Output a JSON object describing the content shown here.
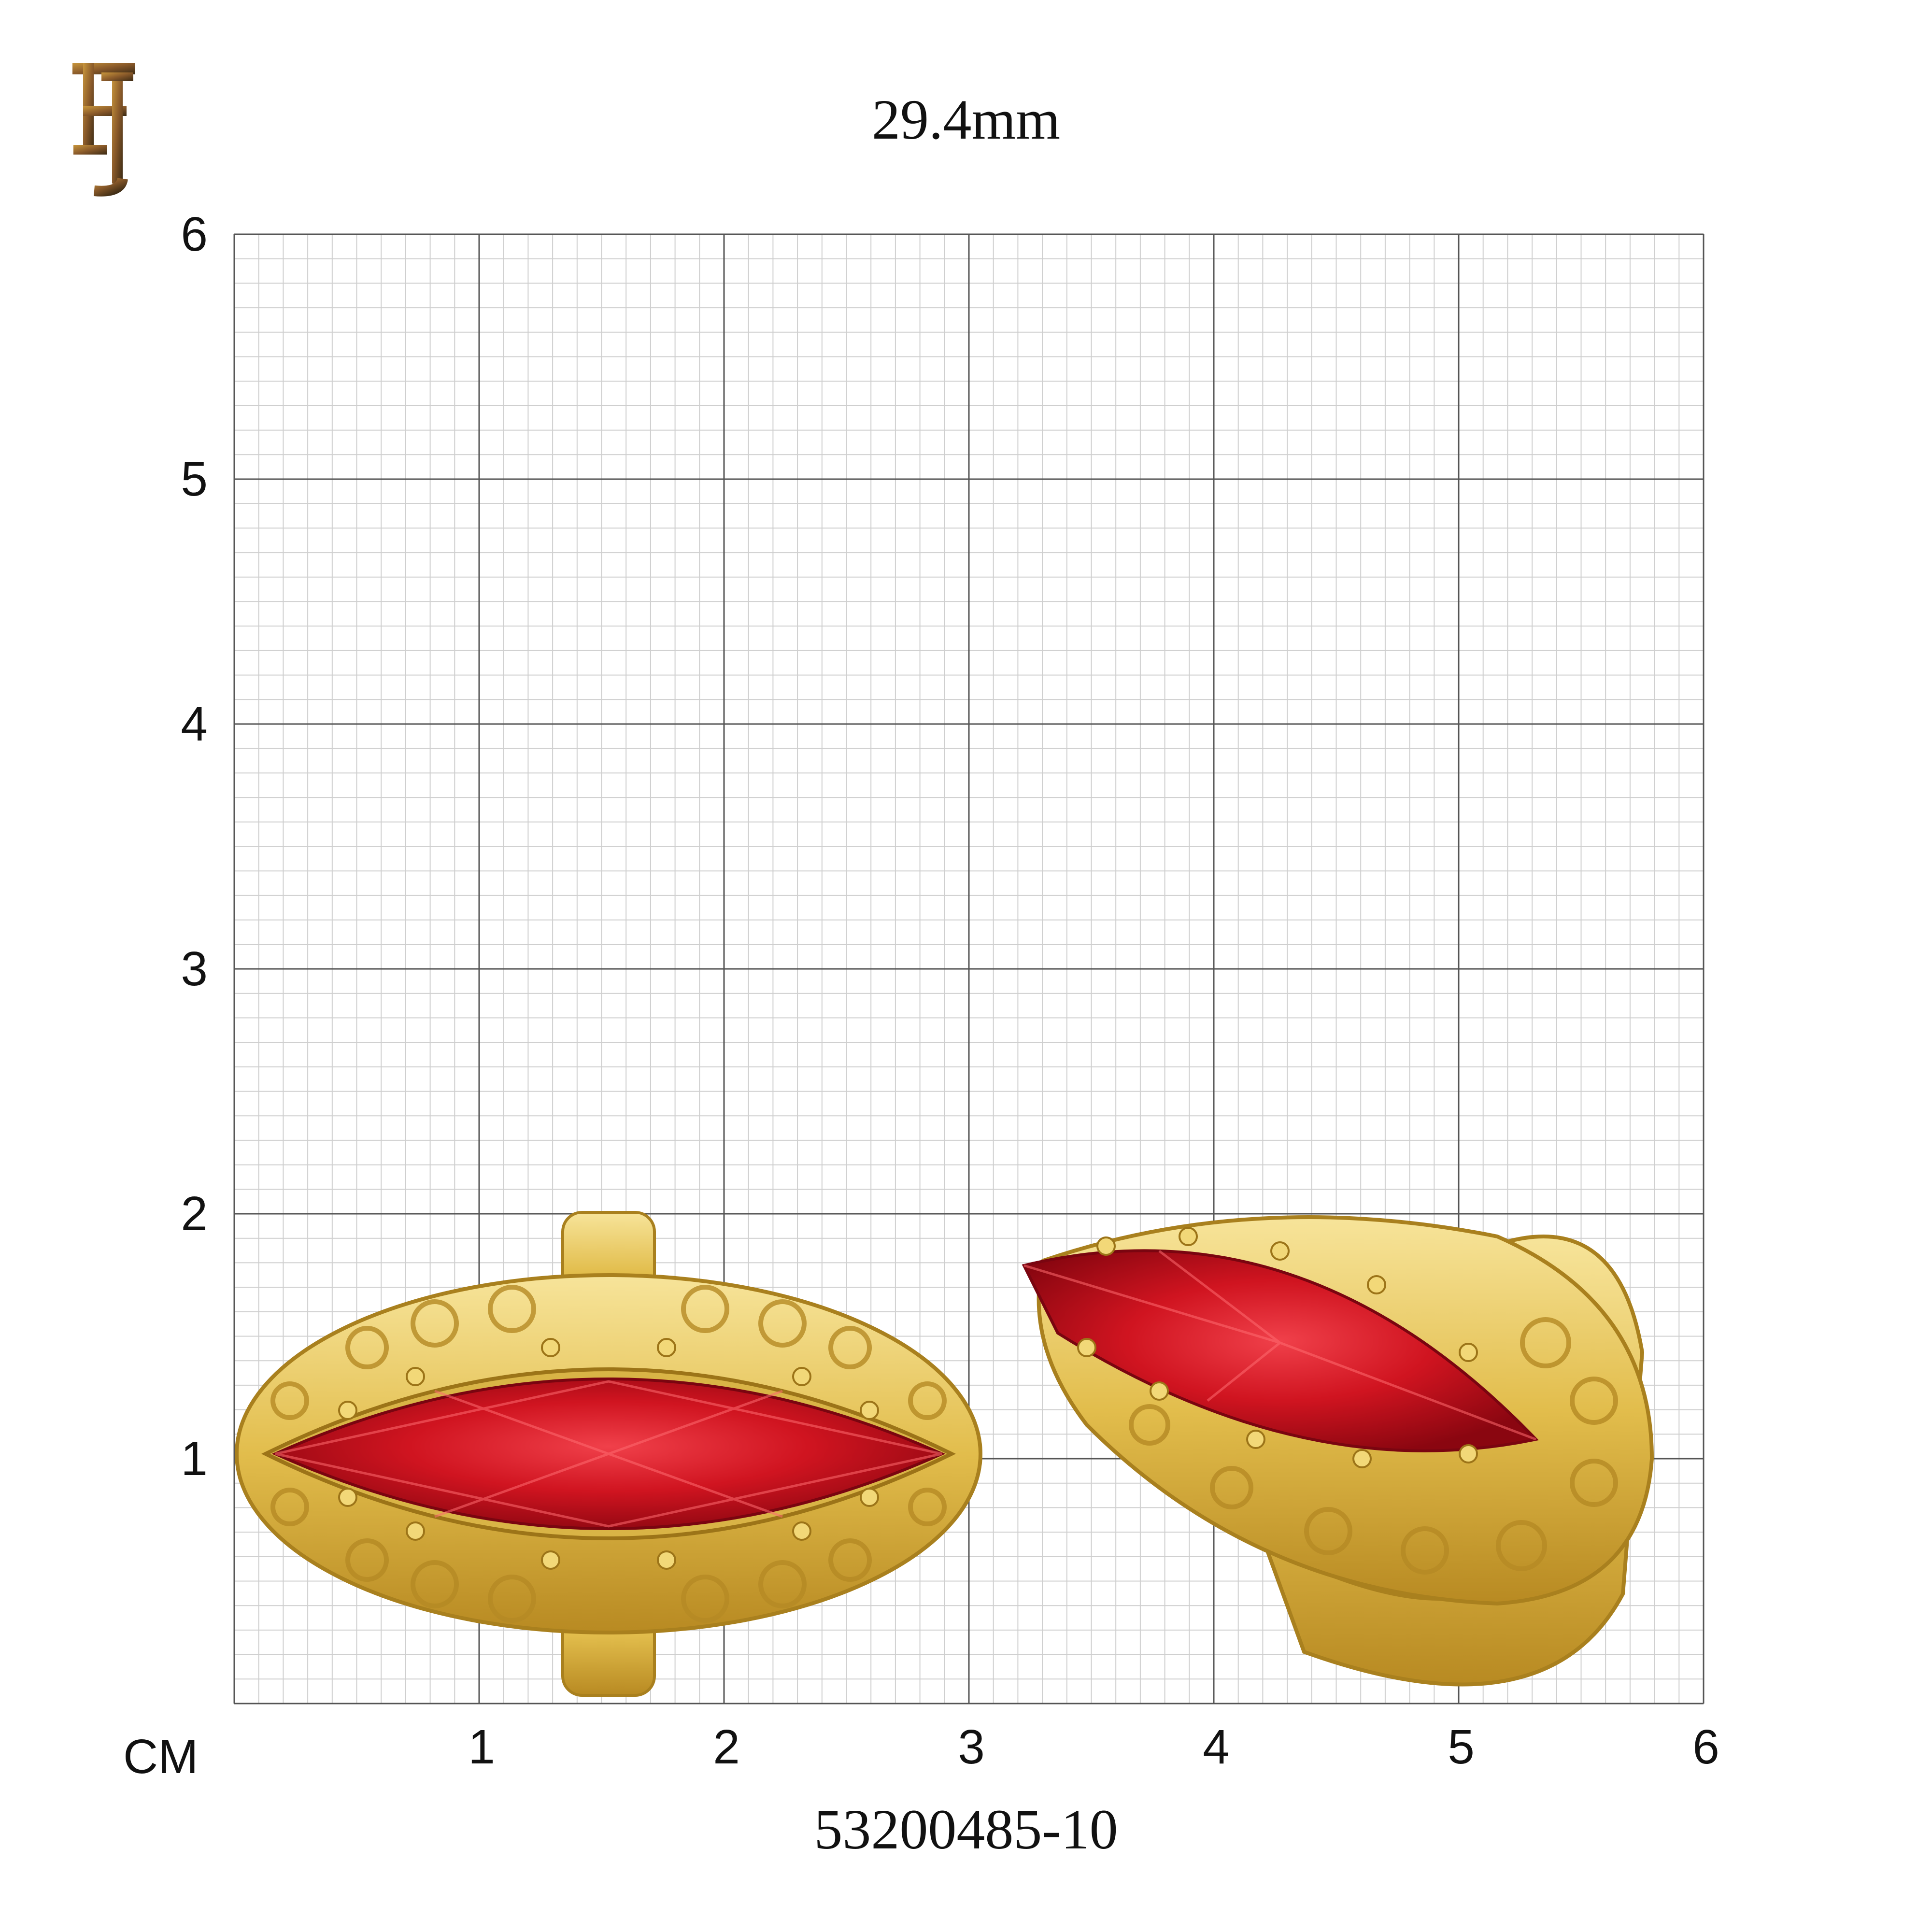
{
  "brand": {
    "logo_text": "FJ",
    "colors": [
      "#3b2a14",
      "#8a5a2a",
      "#c8963c"
    ]
  },
  "header": {
    "dimension": "29.4mm"
  },
  "footer": {
    "sku": "53200485-10"
  },
  "ruler": {
    "unit": "CM",
    "x_ticks": [
      "1",
      "2",
      "3",
      "4",
      "5",
      "6"
    ],
    "y_ticks": [
      "6",
      "5",
      "4",
      "3",
      "2",
      "1"
    ],
    "range_cm": [
      0,
      6
    ],
    "minor_divisions_per_cm": 10
  },
  "product": {
    "type": "ring",
    "metal_color": "#e8c75a",
    "stone_color": "#c8101c",
    "stone_shape": "marquise",
    "views": [
      "top-view",
      "angled-view"
    ]
  }
}
